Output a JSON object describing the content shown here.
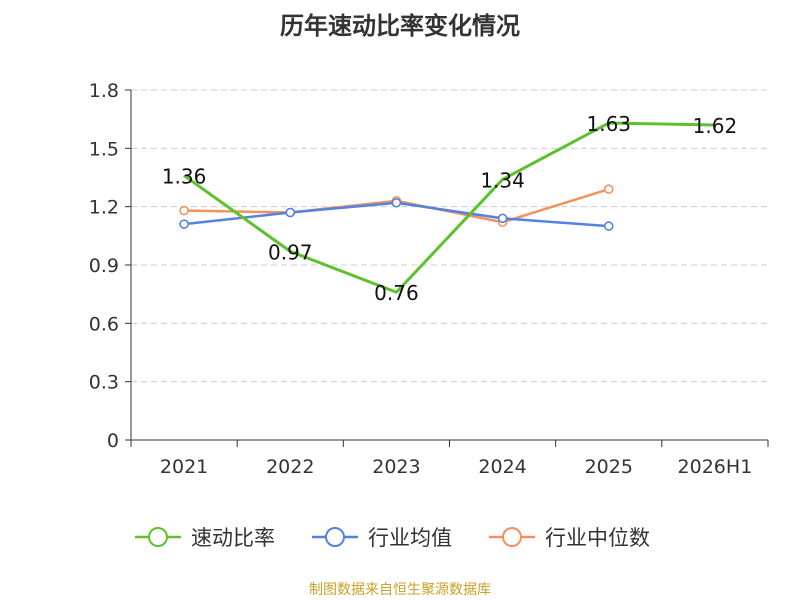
{
  "chart_data": {
    "type": "line",
    "title": "历年速动比率变化情况",
    "categories": [
      "2021",
      "2022",
      "2023",
      "2024",
      "2025",
      "2026H1"
    ],
    "ylim": [
      0,
      1.8
    ],
    "yticks": [
      "0",
      "0.3",
      "0.6",
      "0.9",
      "1.2",
      "1.5",
      "1.8"
    ],
    "grid": true,
    "legend_position": "bottom",
    "series": [
      {
        "name": "速动比率",
        "color": "#5cc12d",
        "values": [
          1.36,
          0.97,
          0.76,
          1.34,
          1.63,
          1.62
        ],
        "labels": [
          "1.36",
          "0.97",
          "0.76",
          "1.34",
          "1.63",
          "1.62"
        ]
      },
      {
        "name": "行业均值",
        "color": "#5382e0",
        "values": [
          1.11,
          1.17,
          1.22,
          1.14,
          1.1,
          null
        ]
      },
      {
        "name": "行业中位数",
        "color": "#f5915a",
        "values": [
          1.18,
          1.17,
          1.23,
          1.12,
          1.29,
          null
        ]
      }
    ]
  },
  "footer": {
    "source": "制图数据来自恒生聚源数据库"
  }
}
